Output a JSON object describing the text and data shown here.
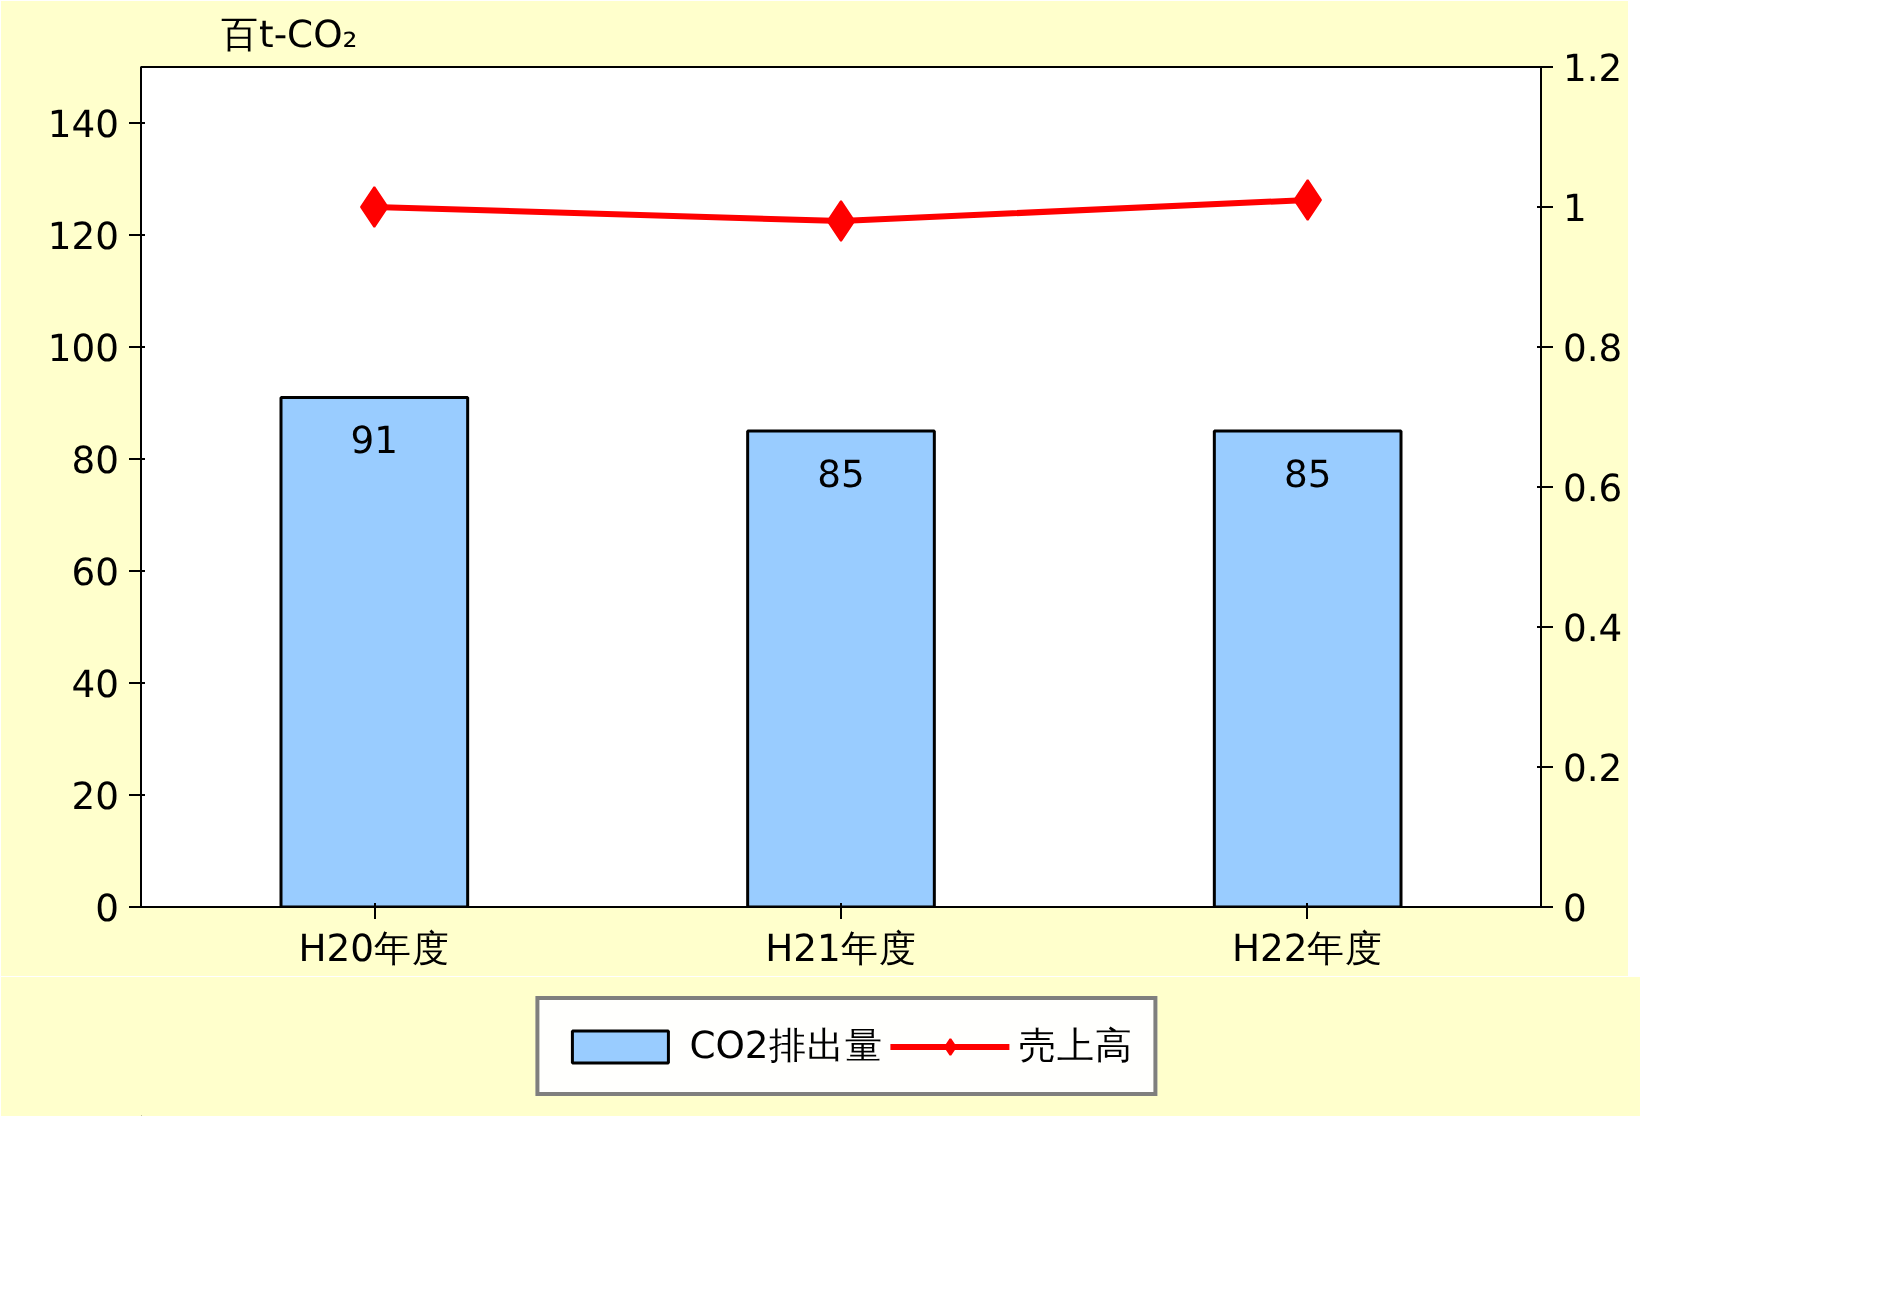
{
  "chart_data": {
    "type": "bar",
    "ylabel": "百t-CO₂",
    "categories": [
      "H20年度",
      "H21年度",
      "H22年度"
    ],
    "series": [
      {
        "name": "CO2排出量",
        "color": "#99ccff",
        "values": [
          91,
          85,
          85
        ],
        "data_labels": true
      },
      {
        "name": "売上高",
        "type": "line",
        "axis": "y2",
        "color": "#ff0000",
        "marker": "diamond",
        "values": [
          1.0,
          0.98,
          1.01
        ]
      }
    ],
    "ylim": [
      0,
      150
    ],
    "yticks": [
      0,
      20,
      40,
      60,
      80,
      100,
      120,
      140
    ],
    "y2lim": [
      0,
      1.2
    ],
    "y2ticks": [
      0,
      0.2,
      0.4,
      0.6,
      0.8,
      1,
      1.2
    ],
    "legend": "bottom"
  }
}
